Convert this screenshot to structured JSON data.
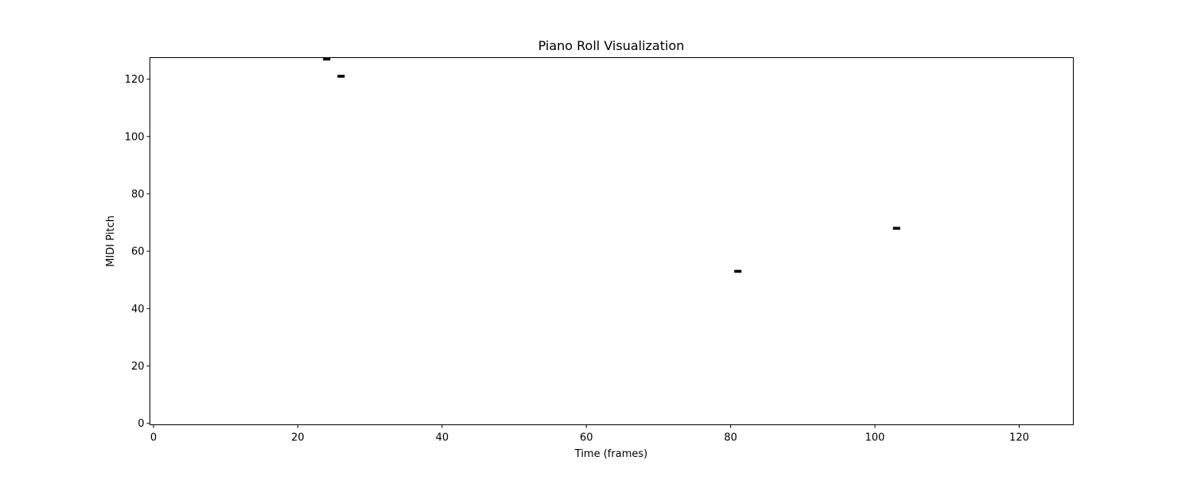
{
  "chart_data": {
    "type": "heatmap",
    "title": "Piano Roll Visualization",
    "xlabel": "Time (frames)",
    "ylabel": "MIDI Pitch",
    "xlim": [
      -0.5,
      127.5
    ],
    "ylim": [
      -0.5,
      127.5
    ],
    "x_ticks": [
      0,
      20,
      40,
      60,
      80,
      100,
      120
    ],
    "y_ticks": [
      0,
      20,
      40,
      60,
      80,
      100,
      120
    ],
    "grid": false,
    "legend": "none",
    "note_color": "#000000",
    "background_color": "#ffffff",
    "notes": [
      {
        "time": 24,
        "pitch": 127
      },
      {
        "time": 26,
        "pitch": 121
      },
      {
        "time": 81,
        "pitch": 53
      },
      {
        "time": 103,
        "pitch": 68
      }
    ]
  }
}
